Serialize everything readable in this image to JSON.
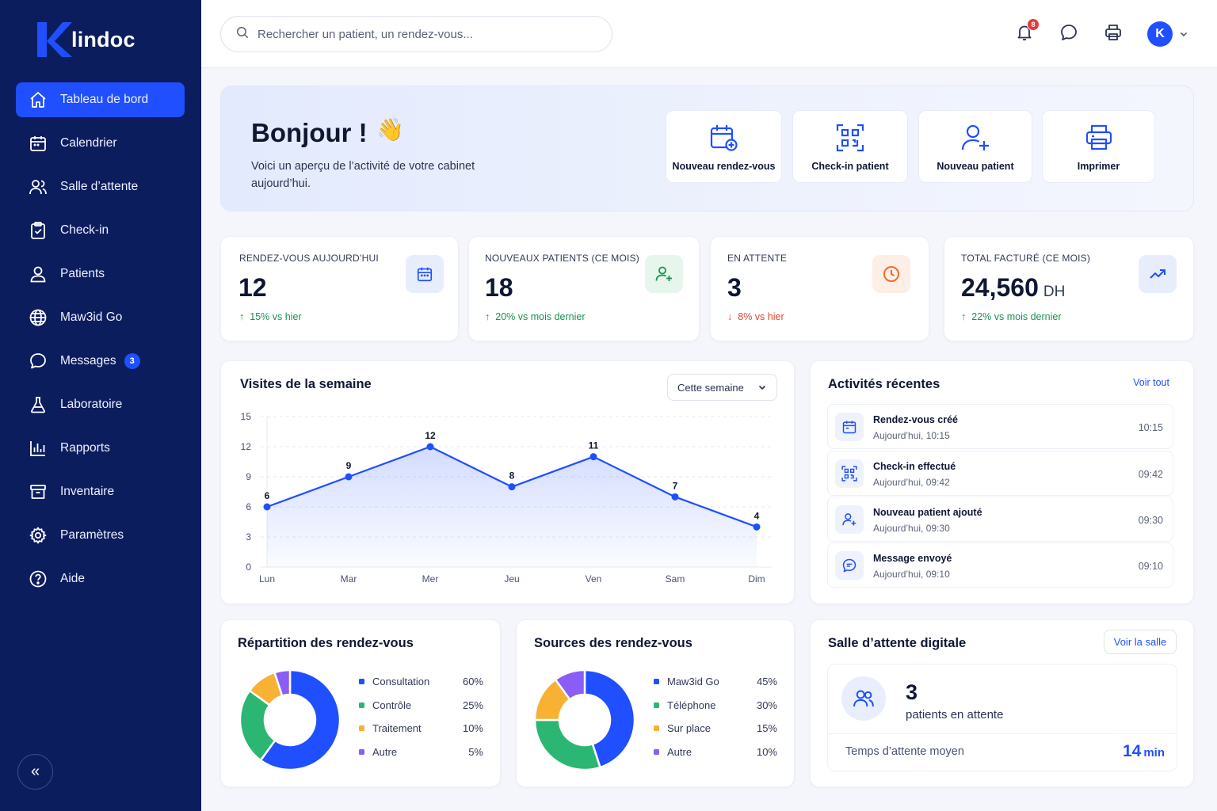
{
  "brand": {
    "letter": "K",
    "name": "lindoc",
    "accent": "#1f4fff",
    "sidebar_bg": "#0c1d5e"
  },
  "sidebar": {
    "items": [
      {
        "label": "Tableau de bord",
        "icon": "home-icon",
        "active": true
      },
      {
        "label": "Calendrier",
        "icon": "calendar-icon"
      },
      {
        "label": "Salle d’attente",
        "icon": "users-icon"
      },
      {
        "label": "Check-in",
        "icon": "clipboard-check-icon"
      },
      {
        "label": "Patients",
        "icon": "user-icon"
      },
      {
        "label": "Maw3id Go",
        "icon": "globe-icon"
      },
      {
        "label": "Messages",
        "icon": "chat-icon",
        "badge": "3"
      },
      {
        "label": "Laboratoire",
        "icon": "flask-icon"
      },
      {
        "label": "Rapports",
        "icon": "bar-chart-icon"
      },
      {
        "label": "Inventaire",
        "icon": "box-icon"
      },
      {
        "label": "Paramètres",
        "icon": "gear-icon"
      },
      {
        "label": "Aide",
        "icon": "help-icon"
      }
    ],
    "collapse_icon": "«"
  },
  "header": {
    "search_placeholder": "Rechercher un patient, un rendez-vous...",
    "notifications_count": "8",
    "avatar_letter": "K"
  },
  "hero": {
    "greeting": "Bonjour !",
    "emoji": "👋",
    "subtitle": "Voici un aperçu de l’activité de votre cabinet aujourd’hui.",
    "actions": [
      {
        "label": "Nouveau rendez-vous",
        "icon": "calendar-plus-icon"
      },
      {
        "label": "Check-in patient",
        "icon": "qr-code-icon"
      },
      {
        "label": "Nouveau patient",
        "icon": "user-plus-icon"
      },
      {
        "label": "Imprimer",
        "icon": "printer-icon"
      }
    ]
  },
  "stats": [
    {
      "label": "RENDEZ-VOUS AUJOURD’HUI",
      "value": "12",
      "unit": "",
      "delta": "15% vs hier",
      "trend": "up",
      "icon": "calendar-icon"
    },
    {
      "label": "NOUVEAUX PATIENTS (CE MOIS)",
      "value": "18",
      "unit": "",
      "delta": "20% vs mois dernier",
      "trend": "up",
      "icon": "user-plus-icon"
    },
    {
      "label": "EN ATTENTE",
      "value": "3",
      "unit": "",
      "delta": "8% vs hier",
      "trend": "down",
      "icon": "clock-icon"
    },
    {
      "label": "TOTAL FACTURÉ (CE MOIS)",
      "value": "24,560",
      "unit": "DH",
      "delta": "22% vs mois dernier",
      "trend": "up",
      "icon": "trending-up-icon"
    }
  ],
  "weekly": {
    "title": "Visites de la semaine",
    "period": "Cette semaine"
  },
  "chart_data": [
    {
      "type": "area",
      "title": "Visites de la semaine",
      "categories": [
        "Lun",
        "Mar",
        "Mer",
        "Jeu",
        "Ven",
        "Sam",
        "Dim"
      ],
      "values": [
        6,
        9,
        12,
        8,
        11,
        7,
        4
      ],
      "ylim": [
        0,
        15
      ],
      "yticks": [
        0,
        3,
        6,
        9,
        12,
        15
      ],
      "grid": true,
      "color": "#1f4fff"
    },
    {
      "type": "pie",
      "title": "Répartition des rendez-vous",
      "categories": [
        "Consultation",
        "Contrôle",
        "Traitement",
        "Autre"
      ],
      "values": [
        60,
        25,
        10,
        5
      ],
      "labels": [
        "60%",
        "25%",
        "10%",
        "5%"
      ],
      "colors": [
        "#1f4fff",
        "#2bb673",
        "#f7b133",
        "#8b5cf6"
      ]
    },
    {
      "type": "pie",
      "title": "Sources des rendez-vous",
      "categories": [
        "Maw3id Go",
        "Téléphone",
        "Sur place",
        "Autre"
      ],
      "values": [
        45,
        30,
        15,
        10
      ],
      "labels": [
        "45%",
        "30%",
        "15%",
        "10%"
      ],
      "colors": [
        "#1f4fff",
        "#2bb673",
        "#f7b133",
        "#8b5cf6"
      ]
    }
  ],
  "activity": {
    "title": "Activités récentes",
    "link": "Voir tout",
    "items": [
      {
        "title": "Rendez-vous créé",
        "sub": "Aujourd’hui, 10:15",
        "time": "10:15",
        "icon": "calendar-icon"
      },
      {
        "title": "Check-in effectué",
        "sub": "Aujourd’hui, 09:42",
        "time": "09:42",
        "icon": "qr-code-icon"
      },
      {
        "title": "Nouveau patient ajouté",
        "sub": "Aujourd’hui, 09:30",
        "time": "09:30",
        "icon": "user-plus-icon"
      },
      {
        "title": "Message envoyé",
        "sub": "Aujourd’hui, 09:10",
        "time": "09:10",
        "icon": "chat-icon"
      }
    ]
  },
  "distribution": {
    "title": "Répartition des rendez-vous"
  },
  "sources": {
    "title": "Sources des rendez-vous"
  },
  "waiting_room": {
    "title": "Salle d’attente digitale",
    "button": "Voir la salle",
    "count": "3",
    "count_label": "patients en attente",
    "avg_label": "Temps d’attente moyen",
    "avg_value": "14",
    "avg_unit": "min"
  }
}
